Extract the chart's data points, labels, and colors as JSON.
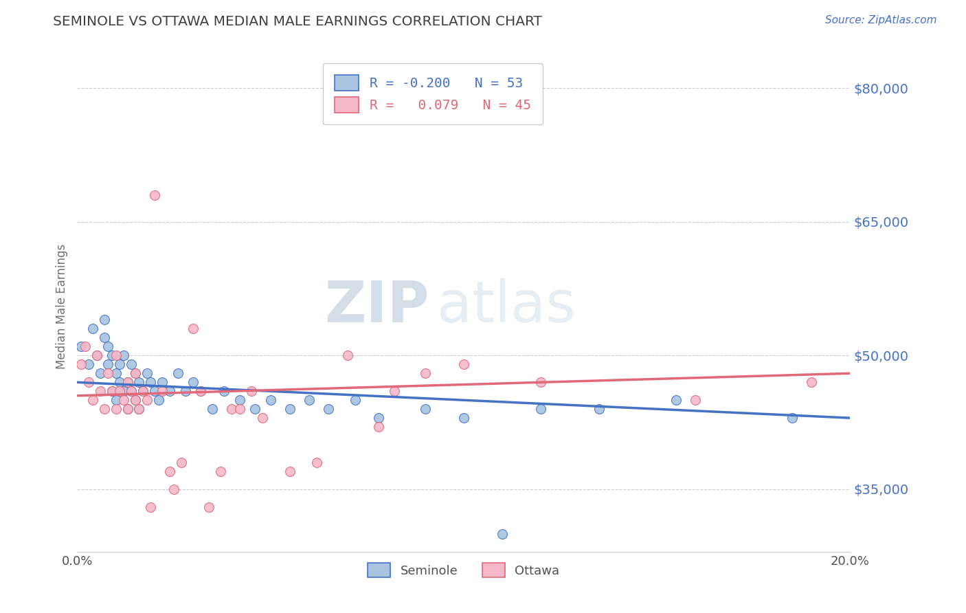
{
  "title": "SEMINOLE VS OTTAWA MEDIAN MALE EARNINGS CORRELATION CHART",
  "source_text": "Source: ZipAtlas.com",
  "ylabel": "Median Male Earnings",
  "xlim": [
    0.0,
    0.2
  ],
  "ylim": [
    28000,
    83000
  ],
  "yticks": [
    35000,
    50000,
    65000,
    80000
  ],
  "ytick_labels": [
    "$35,000",
    "$50,000",
    "$65,000",
    "$80,000"
  ],
  "xticks": [
    0.0,
    0.05,
    0.1,
    0.15,
    0.2
  ],
  "xtick_labels": [
    "0.0%",
    "",
    "",
    "",
    "20.0%"
  ],
  "legend_r_seminole": "-0.200",
  "legend_n_seminole": "53",
  "legend_r_ottawa": "0.079",
  "legend_n_ottawa": "45",
  "seminole_color": "#a8c4e0",
  "ottawa_color": "#f4b8c8",
  "seminole_line_color": "#4472c4",
  "ottawa_line_color": "#e06878",
  "title_color": "#404040",
  "axis_label_color": "#4472c4",
  "background_color": "#ffffff",
  "watermark_color": "#ccd8e8",
  "seminole_x": [
    0.001,
    0.003,
    0.004,
    0.005,
    0.006,
    0.007,
    0.007,
    0.008,
    0.008,
    0.009,
    0.009,
    0.01,
    0.01,
    0.011,
    0.011,
    0.012,
    0.012,
    0.013,
    0.013,
    0.014,
    0.014,
    0.015,
    0.015,
    0.016,
    0.016,
    0.017,
    0.018,
    0.019,
    0.02,
    0.021,
    0.022,
    0.024,
    0.026,
    0.028,
    0.03,
    0.032,
    0.035,
    0.038,
    0.042,
    0.046,
    0.05,
    0.055,
    0.06,
    0.065,
    0.072,
    0.078,
    0.09,
    0.1,
    0.11,
    0.12,
    0.135,
    0.155,
    0.185
  ],
  "seminole_y": [
    51000,
    49000,
    53000,
    50000,
    48000,
    52000,
    54000,
    49000,
    51000,
    46000,
    50000,
    48000,
    45000,
    49000,
    47000,
    46000,
    50000,
    44000,
    47000,
    49000,
    46000,
    45000,
    48000,
    47000,
    44000,
    46000,
    48000,
    47000,
    46000,
    45000,
    47000,
    46000,
    48000,
    46000,
    47000,
    46000,
    44000,
    46000,
    45000,
    44000,
    45000,
    44000,
    45000,
    44000,
    45000,
    43000,
    44000,
    43000,
    30000,
    44000,
    44000,
    45000,
    43000
  ],
  "ottawa_x": [
    0.001,
    0.002,
    0.003,
    0.004,
    0.005,
    0.006,
    0.007,
    0.008,
    0.009,
    0.01,
    0.01,
    0.011,
    0.012,
    0.013,
    0.013,
    0.014,
    0.015,
    0.015,
    0.016,
    0.017,
    0.018,
    0.019,
    0.02,
    0.022,
    0.024,
    0.025,
    0.027,
    0.03,
    0.032,
    0.034,
    0.037,
    0.04,
    0.042,
    0.045,
    0.048,
    0.055,
    0.062,
    0.07,
    0.078,
    0.082,
    0.09,
    0.1,
    0.12,
    0.16,
    0.19
  ],
  "ottawa_y": [
    49000,
    51000,
    47000,
    45000,
    50000,
    46000,
    44000,
    48000,
    46000,
    50000,
    44000,
    46000,
    45000,
    44000,
    47000,
    46000,
    45000,
    48000,
    44000,
    46000,
    45000,
    33000,
    68000,
    46000,
    37000,
    35000,
    38000,
    53000,
    46000,
    33000,
    37000,
    44000,
    44000,
    46000,
    43000,
    37000,
    38000,
    50000,
    42000,
    46000,
    48000,
    49000,
    47000,
    45000,
    47000
  ]
}
